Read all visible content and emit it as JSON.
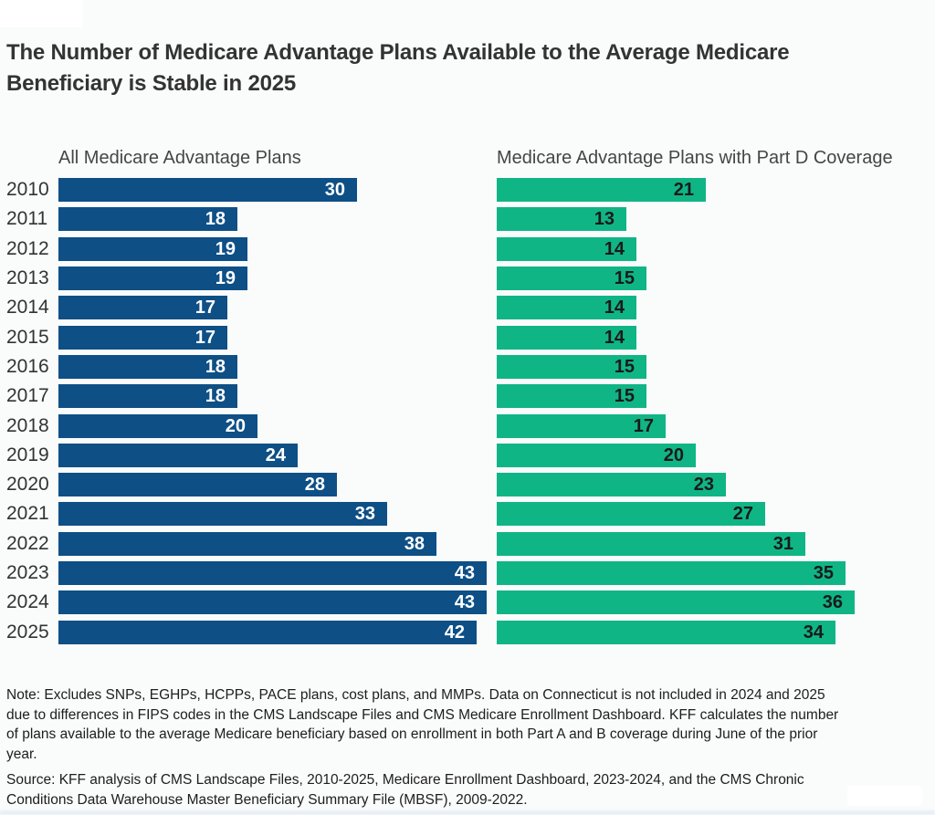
{
  "title": "The Number of Medicare Advantage Plans Available to the Average Medicare Beneficiary is Stable in 2025",
  "note": "Note: Excludes SNPs, EGHPs, HCPPs, PACE plans, cost plans, and MMPs. Data on Connecticut is not included in 2024 and 2025 due to differences in FIPS codes in the CMS Landscape Files and CMS Medicare Enrollment Dashboard. KFF calculates the number of plans available to the average Medicare beneficiary based on enrollment in both Part A and B coverage during June of the prior year.",
  "source": "Source: KFF analysis of CMS Landscape Files, 2010-2025, Medicare Enrollment Dashboard, 2023-2024, and the CMS Chronic Conditions Data Warehouse Master Beneficiary Summary File (MBSF), 2009-2022.",
  "colors": {
    "blue_bar": "#0E4F86",
    "green_bar": "#10B586",
    "blue_bar_label": "#FFFFFF",
    "green_bar_label": "#1A1A1A",
    "title_text": "#333333",
    "header_text": "#454545",
    "year_text": "#333333",
    "note_text": "#1D1D1D",
    "page_background": "#FAFBFB"
  },
  "chart_data": {
    "type": "bar",
    "orientation": "horizontal",
    "value_labels": "inside-end",
    "grid": false,
    "legend_position": "column-headers",
    "xlim": [
      0,
      43
    ],
    "categories": [
      "2010",
      "2011",
      "2012",
      "2013",
      "2014",
      "2015",
      "2016",
      "2017",
      "2018",
      "2019",
      "2020",
      "2021",
      "2022",
      "2023",
      "2024",
      "2025"
    ],
    "series": [
      {
        "name": "All Medicare Advantage Plans",
        "color": "#0E4F86",
        "label_color": "#FFFFFF",
        "values": [
          30,
          18,
          19,
          19,
          17,
          17,
          18,
          18,
          20,
          24,
          28,
          33,
          38,
          43,
          43,
          42
        ]
      },
      {
        "name": "Medicare Advantage Plans with Part D Coverage",
        "color": "#10B586",
        "label_color": "#1A1A1A",
        "values": [
          21,
          13,
          14,
          15,
          14,
          14,
          15,
          15,
          17,
          20,
          23,
          27,
          31,
          35,
          36,
          34
        ]
      }
    ]
  }
}
